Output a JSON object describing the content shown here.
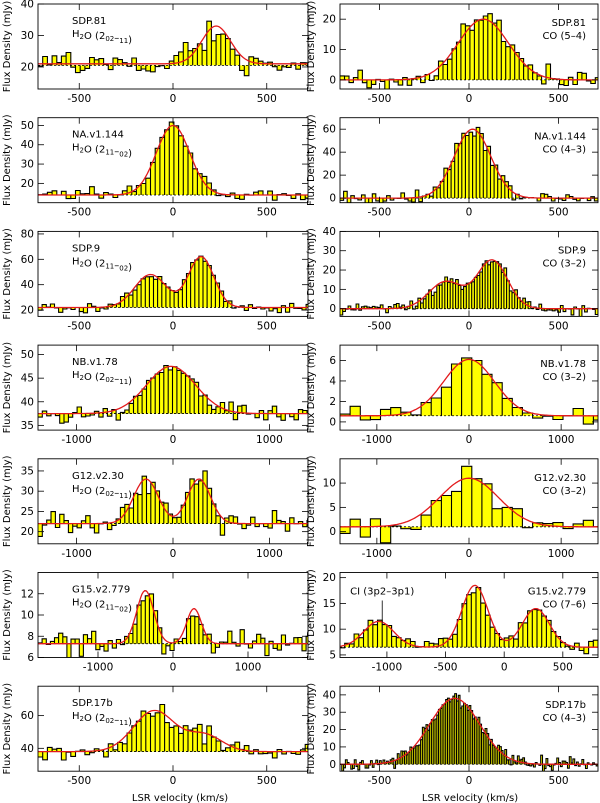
{
  "chart_data": {
    "type": "histogram-grid",
    "xlabel": "LSR velocity (km/s)",
    "ylabel": "Flux Density (mJy)",
    "panels": [
      {
        "id": "p0",
        "source": "SDP.81",
        "line_pre": "H",
        "line_sub1": "2",
        "line_post": "O (2",
        "up": "02",
        "dn": "11",
        "line_end": ")",
        "fit": [
          [
            21,
            -2,
            200,
            3
          ],
          [
            12,
            230,
            180,
            0
          ]
        ],
        "xlim": [
          -720,
          720
        ],
        "ylim": [
          13,
          40
        ],
        "xticks": [
          -500,
          0,
          500
        ],
        "yticks": [
          20,
          30,
          40
        ],
        "base": 20.5,
        "noise": 3,
        "step": 25
      },
      {
        "id": "p1",
        "source": "SDP.81",
        "line_pre": "CO (5–4)",
        "line_sub1": "",
        "line_post": "",
        "up": "",
        "dn": "",
        "line_end": "",
        "fit": [
          [
            0,
            0,
            200,
            3
          ],
          [
            20,
            80,
            330,
            0
          ]
        ],
        "xlim": [
          -720,
          720
        ],
        "ylim": [
          -3,
          25
        ],
        "xticks": [
          -500,
          0,
          500
        ],
        "yticks": [
          0,
          10,
          20
        ],
        "base": 0,
        "noise": 2.5,
        "step": 25
      },
      {
        "id": "p2",
        "source": "NA.v1.144",
        "line_pre": "H",
        "line_sub1": "2",
        "line_post": "O (2",
        "up": "11",
        "dn": "02",
        "line_end": ")",
        "fit": [
          [
            14,
            0,
            200,
            3
          ],
          [
            36,
            0,
            210,
            0
          ]
        ],
        "xlim": [
          -720,
          720
        ],
        "ylim": [
          10,
          54
        ],
        "xticks": [
          -500,
          0,
          500
        ],
        "yticks": [
          20,
          30,
          40,
          50
        ],
        "base": 14,
        "noise": 2.2,
        "step": 25
      },
      {
        "id": "p3",
        "source": "NA.v1.144",
        "line_pre": "CO (4–3)",
        "line_sub1": "",
        "line_post": "",
        "up": "",
        "dn": "",
        "line_end": "",
        "fit": [
          [
            0,
            0,
            200,
            3
          ],
          [
            60,
            20,
            240,
            0
          ]
        ],
        "xlim": [
          -720,
          720
        ],
        "ylim": [
          -4,
          70
        ],
        "xticks": [
          -500,
          0,
          500
        ],
        "yticks": [
          0,
          20,
          40,
          60
        ],
        "base": 0,
        "noise": 5,
        "step": 20
      },
      {
        "id": "p4",
        "source": "SDP.9",
        "line_pre": "H",
        "line_sub1": "2",
        "line_post": "O (2",
        "up": "11",
        "dn": "02",
        "line_end": ")",
        "fit": [
          [
            22,
            0,
            200,
            3
          ],
          [
            26,
            -120,
            200,
            0
          ],
          [
            40,
            150,
            160,
            0
          ]
        ],
        "xlim": [
          -720,
          720
        ],
        "ylim": [
          15,
          82
        ],
        "xticks": [
          -500,
          0,
          500
        ],
        "yticks": [
          20,
          40,
          60,
          80
        ],
        "base": 22,
        "noise": 2.5,
        "step": 22
      },
      {
        "id": "p5",
        "source": "SDP.9",
        "line_pre": "CO (3–2)",
        "line_sub1": "",
        "line_post": "",
        "up": "",
        "dn": "",
        "line_end": "",
        "fit": [
          [
            0,
            0,
            200,
            3
          ],
          [
            14,
            -130,
            220,
            0
          ],
          [
            25,
            130,
            200,
            0
          ]
        ],
        "xlim": [
          -720,
          720
        ],
        "ylim": [
          -4,
          40
        ],
        "xticks": [
          -500,
          0,
          500
        ],
        "yticks": [
          0,
          10,
          20,
          30,
          40
        ],
        "base": 0,
        "noise": 2.5,
        "step": 15
      },
      {
        "id": "p6",
        "source": "NB.v1.78",
        "line_pre": "H",
        "line_sub1": "2",
        "line_post": "O (2",
        "up": "02",
        "dn": "11",
        "line_end": ")",
        "fit": [
          [
            37.5,
            0,
            200,
            3
          ],
          [
            10,
            -20,
            600,
            0
          ]
        ],
        "xlim": [
          -1400,
          1400
        ],
        "ylim": [
          34,
          52
        ],
        "xticks": [
          -1000,
          0,
          1000
        ],
        "yticks": [
          35,
          40,
          45,
          50
        ],
        "base": 37.5,
        "noise": 1.4,
        "step": 45
      },
      {
        "id": "p7",
        "source": "NB.v1.78",
        "line_pre": "CO (3–2)",
        "line_sub1": "",
        "line_post": "",
        "up": "",
        "dn": "",
        "line_end": "",
        "fit": [
          [
            0.6,
            0,
            200,
            3
          ],
          [
            5.5,
            0,
            650,
            0
          ]
        ],
        "xlim": [
          -1400,
          1400
        ],
        "ylim": [
          -0.8,
          7.5
        ],
        "xticks": [
          -1000,
          0,
          1000
        ],
        "yticks": [
          0,
          2,
          4,
          6
        ],
        "base": 0.6,
        "noise": 0.7,
        "step": 110
      },
      {
        "id": "p8",
        "source": "G12.v2.30",
        "line_pre": "H",
        "line_sub1": "2",
        "line_post": "O (2",
        "up": "02",
        "dn": "11",
        "line_end": ")",
        "fit": [
          [
            22,
            0,
            200,
            3
          ],
          [
            11,
            -280,
            300,
            0
          ],
          [
            11,
            270,
            280,
            0
          ]
        ],
        "xlim": [
          -1400,
          1400
        ],
        "ylim": [
          17,
          38
        ],
        "xticks": [
          -1000,
          0,
          1000
        ],
        "yticks": [
          20,
          25,
          30,
          35
        ],
        "base": 22,
        "noise": 2.2,
        "step": 45
      },
      {
        "id": "p9",
        "source": "G12.v2.30",
        "line_pre": "CO (3–2)",
        "line_sub1": "",
        "line_post": "",
        "up": "",
        "dn": "",
        "line_end": "",
        "fit": [
          [
            1,
            0,
            200,
            3
          ],
          [
            10,
            0,
            750,
            0
          ]
        ],
        "xlim": [
          -1400,
          1400
        ],
        "ylim": [
          -2.5,
          15
        ],
        "xticks": [
          -1000,
          0,
          1000
        ],
        "yticks": [
          0,
          5,
          10
        ],
        "base": 1,
        "noise": 2,
        "step": 110
      },
      {
        "id": "p10",
        "source": "G15.v2.779",
        "line_pre": "H",
        "line_sub1": "2",
        "line_post": "O (2",
        "up": "11",
        "dn": "02",
        "line_end": ")",
        "fit": [
          [
            7.3,
            0,
            200,
            3
          ],
          [
            5,
            -370,
            270,
            0
          ],
          [
            3.3,
            280,
            230,
            0
          ]
        ],
        "xlim": [
          -1800,
          1800
        ],
        "ylim": [
          6,
          14
        ],
        "xticks": [
          -1000,
          0,
          1000
        ],
        "yticks": [
          6,
          8,
          10,
          12
        ],
        "base": 7.3,
        "noise": 0.9,
        "step": 55
      },
      {
        "id": "p11",
        "source": "G15.v2.779",
        "line_pre": "CO (7–6)",
        "line_sub1": "",
        "line_post": "",
        "up": "",
        "dn": "",
        "line_end": "",
        "fit": [
          [
            6.5,
            0,
            200,
            3
          ],
          [
            5,
            -1070,
            300,
            0
          ],
          [
            12,
            -250,
            260,
            0
          ],
          [
            7.5,
            270,
            270,
            0
          ]
        ],
        "xlim": [
          -1400,
          800
        ],
        "ylim": [
          4.5,
          21
        ],
        "xticks": [
          -1000,
          -500,
          0,
          500
        ],
        "yticks": [
          5,
          10,
          15,
          20
        ],
        "base": 6.5,
        "noise": 1,
        "step": 40,
        "annotation": "CI (3p2–3p1)",
        "annotation_v": -1040
      },
      {
        "id": "p12",
        "source": "SDP.17b",
        "line_pre": "H",
        "line_sub1": "2",
        "line_post": "O (2",
        "up": "02",
        "dn": "11",
        "line_end": ")",
        "fit": [
          [
            38,
            0,
            200,
            3
          ],
          [
            25,
            -100,
            260,
            0
          ],
          [
            10,
            170,
            220,
            0
          ]
        ],
        "xlim": [
          -720,
          720
        ],
        "ylim": [
          26,
          78
        ],
        "xticks": [
          -500,
          0,
          500
        ],
        "yticks": [
          40,
          60
        ],
        "base": 38,
        "noise": 4,
        "step": 25
      },
      {
        "id": "p13",
        "source": "SDP.17b",
        "line_pre": "CO (4–3)",
        "line_sub1": "",
        "line_post": "",
        "up": "",
        "dn": "",
        "line_end": "",
        "fit": [
          [
            0,
            0,
            200,
            3
          ],
          [
            38,
            -80,
            330,
            0
          ]
        ],
        "xlim": [
          -720,
          720
        ],
        "ylim": [
          -4,
          45
        ],
        "xticks": [
          -500,
          0,
          500
        ],
        "yticks": [
          0,
          10,
          20,
          30,
          40
        ],
        "base": 0,
        "noise": 2.5,
        "step": 10
      }
    ]
  }
}
